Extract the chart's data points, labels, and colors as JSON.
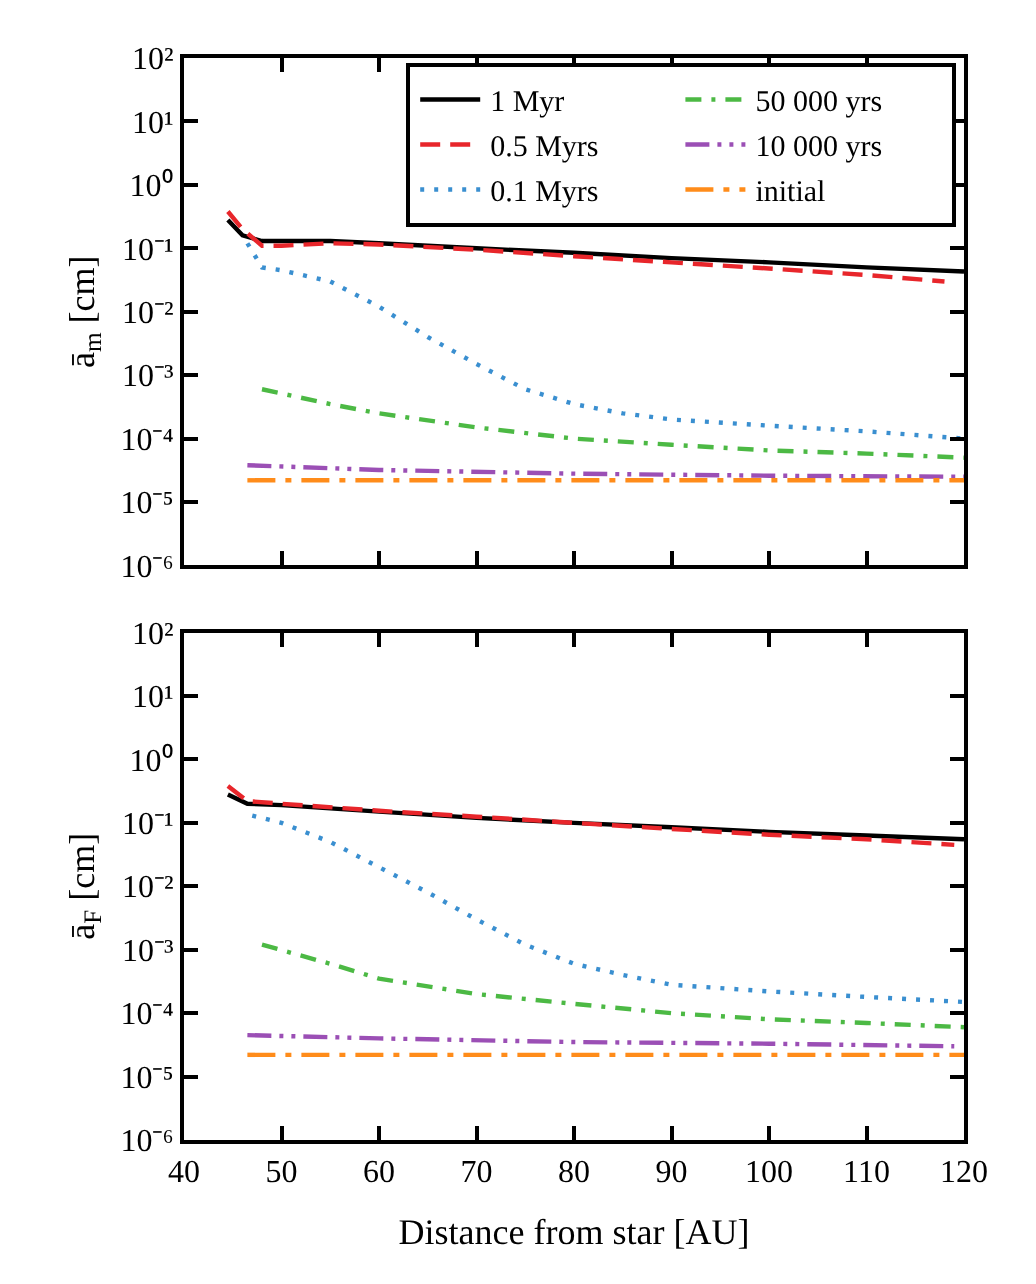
{
  "chart_data": [
    {
      "type": "line",
      "ylabel": "ā$_{m}$ [cm]",
      "log": true,
      "legend": "top right",
      "tick_labels": "y",
      "xlim": [
        40,
        120
      ],
      "xticks": [
        40,
        50,
        60,
        70,
        80,
        90,
        100,
        110,
        120
      ],
      "ylim": [
        1e-06,
        100
      ],
      "yticks": [
        {
          "value": 1e-06,
          "label": "10⁻⁶"
        },
        {
          "value": 1e-05,
          "label": "10⁻⁵"
        },
        {
          "value": 0.0001,
          "label": "10⁻⁴"
        },
        {
          "value": 0.001,
          "label": "10⁻³"
        },
        {
          "value": 0.01,
          "label": "10⁻²"
        },
        {
          "value": 0.1,
          "label": "10⁻¹"
        },
        {
          "value": 1,
          "label": "10⁰"
        },
        {
          "value": 10,
          "label": "10¹"
        },
        {
          "value": 100,
          "label": "10²"
        }
      ],
      "series": [
        {
          "name": "1 Myr",
          "color": "#000000",
          "line_style": "solid",
          "x": [
            44.5,
            46,
            48,
            55,
            60,
            70,
            80,
            90,
            100,
            110,
            120
          ],
          "values": [
            0.28,
            0.16,
            0.13,
            0.13,
            0.12,
            0.1,
            0.085,
            0.07,
            0.06,
            0.05,
            0.043
          ]
        },
        {
          "name": "0.5 Myrs",
          "color": "#e8262b",
          "line_style": "dashed",
          "x": [
            44.5,
            46,
            48,
            50,
            55,
            60,
            70,
            80,
            90,
            100,
            110,
            118
          ],
          "values": [
            0.38,
            0.2,
            0.11,
            0.11,
            0.12,
            0.115,
            0.095,
            0.075,
            0.06,
            0.048,
            0.038,
            0.03
          ]
        },
        {
          "name": "0.1 Myrs",
          "color": "#3a8fd0",
          "line_style": "dotted",
          "x": [
            46.5,
            48,
            50,
            55,
            60,
            65,
            70,
            75,
            80,
            85,
            90,
            100,
            110,
            120
          ],
          "values": [
            0.12,
            0.05,
            0.045,
            0.03,
            0.012,
            0.004,
            0.0015,
            0.0006,
            0.00035,
            0.00025,
            0.0002,
            0.00016,
            0.00013,
            0.0001
          ]
        },
        {
          "name": "50 000 yrs",
          "color": "#4cb944",
          "line_style": "dashdot",
          "x": [
            48,
            55,
            60,
            70,
            80,
            90,
            100,
            110,
            120
          ],
          "values": [
            0.0006,
            0.00035,
            0.00025,
            0.00015,
            0.0001,
            8e-05,
            6.5e-05,
            5.8e-05,
            5e-05
          ]
        },
        {
          "name": "10 000 yrs",
          "color": "#9b4fb5",
          "line_style": "dashdotdot",
          "x": [
            46.5,
            60,
            80,
            100,
            120
          ],
          "values": [
            3.8e-05,
            3.2e-05,
            2.8e-05,
            2.6e-05,
            2.5e-05
          ]
        },
        {
          "name": "initial",
          "color": "#ff8c1a",
          "line_style": "longdashdot",
          "x": [
            46.5,
            120
          ],
          "values": [
            2.2e-05,
            2.2e-05
          ]
        }
      ]
    },
    {
      "type": "line",
      "ylabel": "ā$_{F}$ [cm]",
      "xlabel": "Distance from star [AU]",
      "log": true,
      "xlim": [
        40,
        120
      ],
      "xticks": [
        40,
        50,
        60,
        70,
        80,
        90,
        100,
        110,
        120
      ],
      "ylim": [
        1e-06,
        100
      ],
      "yticks": [
        {
          "value": 1e-06,
          "label": "10⁻⁶"
        },
        {
          "value": 1e-05,
          "label": "10⁻⁵"
        },
        {
          "value": 0.0001,
          "label": "10⁻⁴"
        },
        {
          "value": 0.001,
          "label": "10⁻³"
        },
        {
          "value": 0.01,
          "label": "10⁻²"
        },
        {
          "value": 0.1,
          "label": "10⁻¹"
        },
        {
          "value": 1,
          "label": "10⁰"
        },
        {
          "value": 10,
          "label": "10¹"
        },
        {
          "value": 100,
          "label": "10²"
        }
      ],
      "series": [
        {
          "color": "#000000",
          "line_style": "solid",
          "x": [
            44.5,
            46.5,
            50,
            60,
            70,
            80,
            90,
            100,
            110,
            120
          ],
          "values": [
            0.28,
            0.2,
            0.19,
            0.15,
            0.12,
            0.1,
            0.085,
            0.072,
            0.063,
            0.055
          ]
        },
        {
          "color": "#e8262b",
          "line_style": "dashed",
          "x": [
            44.5,
            46.5,
            50,
            60,
            70,
            80,
            90,
            100,
            110,
            119
          ],
          "values": [
            0.38,
            0.22,
            0.2,
            0.155,
            0.125,
            0.1,
            0.08,
            0.065,
            0.055,
            0.045
          ]
        },
        {
          "color": "#3a8fd0",
          "line_style": "dotted",
          "x": [
            47,
            50,
            55,
            60,
            65,
            70,
            75,
            80,
            85,
            90,
            100,
            110,
            120
          ],
          "values": [
            0.13,
            0.1,
            0.05,
            0.02,
            0.008,
            0.003,
            0.0012,
            0.0006,
            0.0004,
            0.00028,
            0.00022,
            0.00018,
            0.00015
          ]
        },
        {
          "color": "#4cb944",
          "line_style": "dashdot",
          "x": [
            48,
            55,
            60,
            70,
            80,
            90,
            100,
            110,
            120
          ],
          "values": [
            0.0012,
            0.0006,
            0.00035,
            0.0002,
            0.00014,
            0.0001,
            8e-05,
            7e-05,
            6e-05
          ]
        },
        {
          "color": "#9b4fb5",
          "line_style": "dashdotdot",
          "x": [
            46.5,
            60,
            80,
            100,
            119
          ],
          "values": [
            4.5e-05,
            4e-05,
            3.5e-05,
            3.3e-05,
            3e-05
          ]
        },
        {
          "color": "#ff8c1a",
          "line_style": "longdashdot",
          "x": [
            46.5,
            120
          ],
          "values": [
            2.2e-05,
            2.2e-05
          ]
        }
      ]
    }
  ]
}
